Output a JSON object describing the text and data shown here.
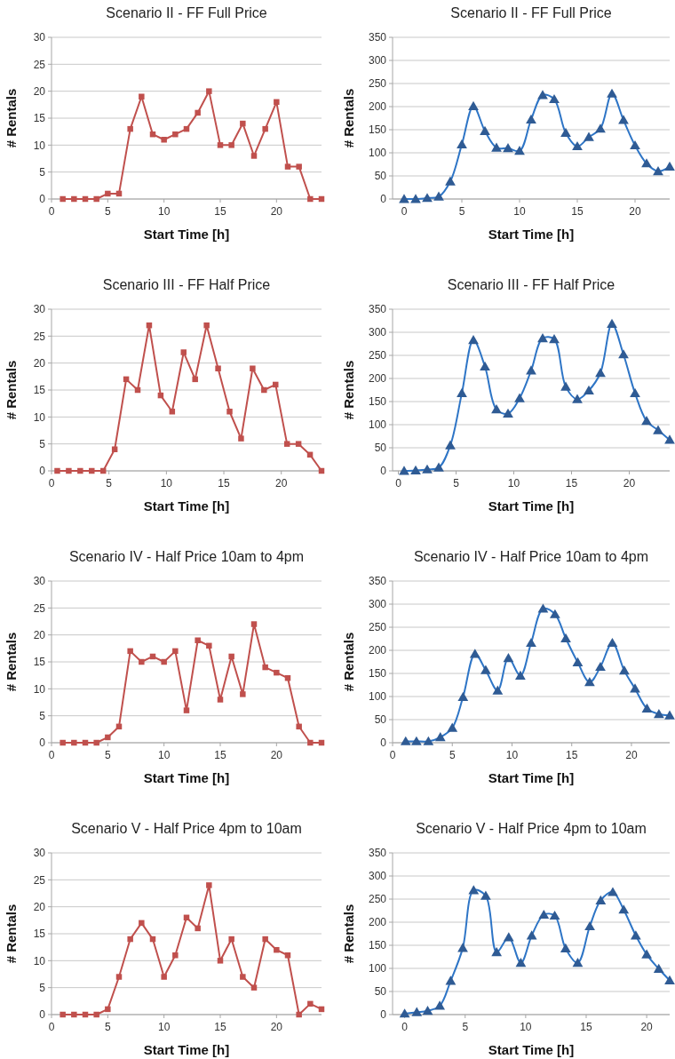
{
  "chart_data": [
    {
      "type": "line",
      "title": "Scenario II - FF Full Price",
      "xlabel": "Start Time [h]",
      "ylabel": "# Rentals",
      "x": [
        1,
        2,
        3,
        4,
        5,
        6,
        7,
        8,
        9,
        10,
        11,
        12,
        13,
        14,
        15,
        16,
        17,
        18,
        19,
        20,
        21,
        22,
        23,
        24
      ],
      "series": [
        {
          "color": "#c0504d",
          "values": [
            0,
            0,
            0,
            0,
            1,
            1,
            13,
            19,
            12,
            11,
            12,
            13,
            16,
            20,
            10,
            10,
            14,
            8,
            13,
            18,
            6,
            6,
            0,
            0
          ]
        }
      ],
      "xlim": [
        0,
        24
      ],
      "xticks": [
        0,
        5,
        10,
        15,
        20
      ],
      "ylim": [
        0,
        30
      ],
      "yticks": [
        0,
        5,
        10,
        15,
        20,
        25,
        30
      ],
      "grid": "y",
      "marker": "square",
      "line_style": "solid"
    },
    {
      "type": "line",
      "title": "Scenario II - FF Full Price",
      "xlabel": "Start Time [h]",
      "ylabel": "# Rentals",
      "x": [
        0,
        1,
        2,
        3,
        4,
        5,
        6,
        7,
        8,
        9,
        10,
        11,
        12,
        13,
        14,
        15,
        16,
        17,
        18,
        19,
        20,
        21,
        22,
        23
      ],
      "series": [
        {
          "color": "#2e75c6",
          "values": [
            0,
            0,
            2,
            5,
            38,
            118,
            201,
            147,
            111,
            110,
            104,
            172,
            225,
            216,
            143,
            114,
            134,
            152,
            228,
            171,
            116,
            77,
            60,
            70
          ]
        }
      ],
      "xlim": [
        -1,
        23
      ],
      "xticks": [
        0,
        5,
        10,
        15,
        20
      ],
      "ylim": [
        0,
        350
      ],
      "yticks": [
        0,
        50,
        100,
        150,
        200,
        250,
        300,
        350
      ],
      "grid": "y",
      "marker": "triangle",
      "line_style": "solid"
    },
    {
      "type": "line",
      "title": "Scenario III - FF Half Price",
      "xlabel": "Start Time [h]",
      "ylabel": "# Rentals",
      "x": [
        0.5,
        1.5,
        2.5,
        3.5,
        4.5,
        5.5,
        6.5,
        7.5,
        8.5,
        9.5,
        10.5,
        11.5,
        12.5,
        13.5,
        14.5,
        15.5,
        16.5,
        17.5,
        18.5,
        19.5,
        20.5,
        21.5,
        22.5,
        23.5
      ],
      "series": [
        {
          "color": "#c0504d",
          "values": [
            0,
            0,
            0,
            0,
            0,
            4,
            17,
            15,
            27,
            14,
            11,
            22,
            17,
            27,
            19,
            11,
            6,
            19,
            15,
            16,
            5,
            5,
            3,
            0
          ]
        }
      ],
      "xlim": [
        0,
        23.5
      ],
      "xticks": [
        0,
        5,
        10,
        15,
        20
      ],
      "ylim": [
        0,
        30
      ],
      "yticks": [
        0,
        5,
        10,
        15,
        20,
        25,
        30
      ],
      "grid": "y",
      "marker": "square",
      "line_style": "solid"
    },
    {
      "type": "line",
      "title": "Scenario III - FF Half Price",
      "xlabel": "Start Time [h]",
      "ylabel": "# Rentals",
      "x": [
        0.5,
        1.5,
        2.5,
        3.5,
        4.5,
        5.5,
        6.5,
        7.5,
        8.5,
        9.5,
        10.5,
        11.5,
        12.5,
        13.5,
        14.5,
        15.5,
        16.5,
        17.5,
        18.5,
        19.5,
        20.5,
        21.5,
        22.5,
        23.5
      ],
      "series": [
        {
          "color": "#2e75c6",
          "values": [
            0,
            1,
            3,
            7,
            55,
            168,
            283,
            226,
            133,
            124,
            157,
            217,
            287,
            285,
            182,
            155,
            174,
            212,
            318,
            252,
            168,
            108,
            88,
            67
          ]
        }
      ],
      "xlim": [
        -0.5,
        23.5
      ],
      "xticks": [
        0,
        5,
        10,
        15,
        20
      ],
      "ylim": [
        0,
        350
      ],
      "yticks": [
        0,
        50,
        100,
        150,
        200,
        250,
        300,
        350
      ],
      "grid": "y",
      "marker": "triangle",
      "line_style": "solid"
    },
    {
      "type": "line",
      "title": "Scenario IV - Half Price 10am to 4pm",
      "xlabel": "Start Time [h]",
      "ylabel": "# Rentals",
      "x": [
        1,
        2,
        3,
        4,
        5,
        6,
        7,
        8,
        9,
        10,
        11,
        12,
        13,
        14,
        15,
        16,
        17,
        18,
        19,
        20,
        21,
        22,
        23,
        24
      ],
      "series": [
        {
          "color": "#c0504d",
          "values": [
            0,
            0,
            0,
            0,
            1,
            3,
            17,
            15,
            16,
            15,
            17,
            6,
            19,
            18,
            8,
            16,
            9,
            22,
            14,
            13,
            12,
            3,
            0,
            0
          ]
        }
      ],
      "xlim": [
        0,
        24
      ],
      "xticks": [
        0,
        5,
        10,
        15,
        20
      ],
      "ylim": [
        0,
        30
      ],
      "yticks": [
        0,
        5,
        10,
        15,
        20,
        25,
        30
      ],
      "grid": "y",
      "marker": "square",
      "line_style": "solid"
    },
    {
      "type": "line",
      "title": "Scenario IV - Half Price 10am to 4pm",
      "xlabel": "Start Time [h]",
      "ylabel": "# Rentals",
      "x": [
        1.1,
        2,
        3,
        4,
        5,
        5.9,
        6.9,
        7.8,
        8.8,
        9.7,
        10.7,
        11.6,
        12.6,
        13.6,
        14.5,
        15.5,
        16.5,
        17.4,
        18.4,
        19.4,
        20.3,
        21.3,
        22.3,
        23.2
      ],
      "series": [
        {
          "color": "#2e75c6",
          "values": [
            3,
            3,
            3,
            12,
            32,
            99,
            192,
            157,
            113,
            183,
            145,
            216,
            290,
            278,
            226,
            174,
            131,
            164,
            216,
            156,
            117,
            74,
            62,
            59
          ]
        }
      ],
      "xlim": [
        0,
        23.2
      ],
      "xticks": [
        0,
        5,
        10,
        15,
        20
      ],
      "ylim": [
        0,
        350
      ],
      "yticks": [
        0,
        50,
        100,
        150,
        200,
        250,
        300,
        350
      ],
      "grid": "y",
      "marker": "triangle",
      "line_style": "solid"
    },
    {
      "type": "line",
      "title": "Scenario V - Half Price 4pm to 10am",
      "xlabel": "Start Time [h]",
      "ylabel": "# Rentals",
      "x": [
        1,
        2,
        3,
        4,
        5,
        6,
        7,
        8,
        9,
        10,
        11,
        12,
        13,
        14,
        15,
        16,
        17,
        18,
        19,
        20,
        21,
        22,
        23,
        24
      ],
      "series": [
        {
          "color": "#c0504d",
          "values": [
            0,
            0,
            0,
            0,
            1,
            7,
            14,
            17,
            14,
            7,
            11,
            18,
            16,
            24,
            10,
            14,
            7,
            5,
            14,
            12,
            11,
            0,
            2,
            1
          ]
        }
      ],
      "xlim": [
        0,
        24
      ],
      "xticks": [
        0,
        5,
        10,
        15,
        20
      ],
      "ylim": [
        0,
        30
      ],
      "yticks": [
        0,
        5,
        10,
        15,
        20,
        25,
        30
      ],
      "grid": "y",
      "marker": "square",
      "line_style": "solid"
    },
    {
      "type": "line",
      "title": "Scenario V - Half Price 4pm to 10am",
      "xlabel": "Start Time [h]",
      "ylabel": "# Rentals",
      "x": [
        0,
        1,
        1.9,
        2.9,
        3.8,
        4.8,
        5.7,
        6.7,
        7.6,
        8.6,
        9.6,
        10.5,
        11.5,
        12.4,
        13.3,
        14.3,
        15.3,
        16.2,
        17.2,
        18.1,
        19.1,
        20,
        21,
        21.9
      ],
      "series": [
        {
          "color": "#2e75c6",
          "values": [
            2,
            5,
            8,
            19,
            73,
            144,
            269,
            257,
            135,
            167,
            112,
            171,
            216,
            214,
            143,
            112,
            191,
            247,
            265,
            227,
            171,
            130,
            99,
            74
          ]
        }
      ],
      "xlim": [
        -1,
        21.9
      ],
      "xticks": [
        0,
        5,
        10,
        15,
        20
      ],
      "ylim": [
        0,
        350
      ],
      "yticks": [
        0,
        50,
        100,
        150,
        200,
        250,
        300,
        350
      ],
      "grid": "y",
      "marker": "triangle",
      "line_style": "solid"
    }
  ]
}
